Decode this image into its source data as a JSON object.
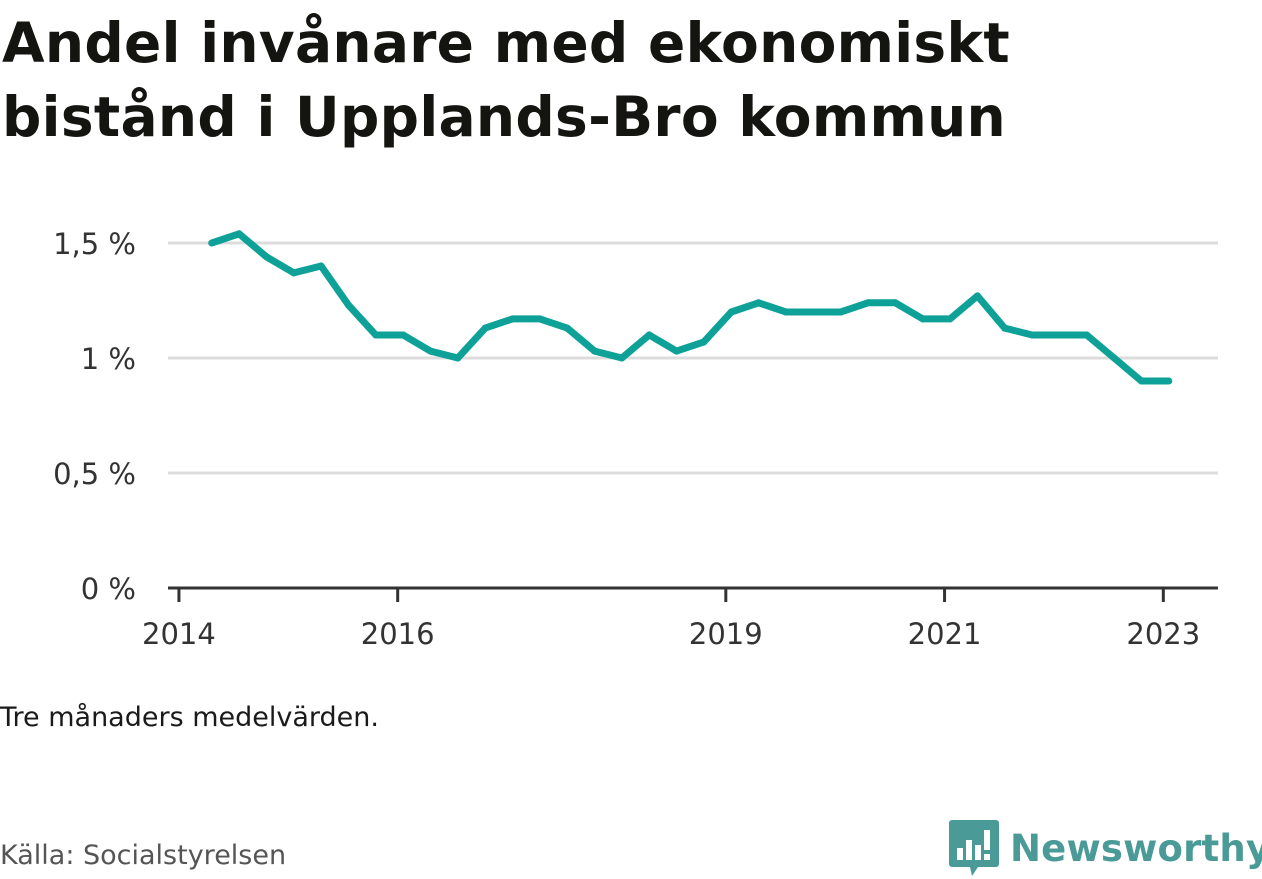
{
  "title": "Andel invånare med ekonomiskt bistånd i Upplands-Bro kommun",
  "note": "Tre månaders medelvärden.",
  "source": "Källa: Socialstyrelsen",
  "brand": {
    "name": "Newsworthy",
    "icon": "bar-chart-speech-bubble-icon",
    "color": "#4a9a97"
  },
  "colors": {
    "line": "#0ea198",
    "grid": "#dcdcdc",
    "axis": "#333333"
  },
  "chart_data": {
    "type": "line",
    "title": "Andel invånare med ekonomiskt bistånd i Upplands-Bro kommun",
    "xlabel": "",
    "ylabel": "",
    "ylim": [
      0,
      1.6
    ],
    "grid": true,
    "yticks": [
      {
        "value": 0,
        "label": "0 %"
      },
      {
        "value": 0.5,
        "label": "0,5 %"
      },
      {
        "value": 1,
        "label": "1 %"
      },
      {
        "value": 1.5,
        "label": "1,5 %"
      }
    ],
    "xticks": [
      {
        "value": 2014.0,
        "label": "2014"
      },
      {
        "value": 2016.0,
        "label": "2016"
      },
      {
        "value": 2019.0,
        "label": "2019"
      },
      {
        "value": 2021.0,
        "label": "2021"
      },
      {
        "value": 2023.0,
        "label": "2023"
      }
    ],
    "xlim": [
      2013.9,
      2023.5
    ],
    "series": [
      {
        "x": [
          2014.3,
          2014.55,
          2014.8,
          2015.05,
          2015.3,
          2015.55,
          2015.8,
          2016.05,
          2016.3,
          2016.55,
          2016.8,
          2017.05,
          2017.3,
          2017.55,
          2017.8,
          2018.05,
          2018.3,
          2018.55,
          2018.8,
          2019.05,
          2019.3,
          2019.55,
          2019.8,
          2020.05,
          2020.3,
          2020.55,
          2020.8,
          2021.05,
          2021.3,
          2021.55,
          2021.8,
          2022.05,
          2022.3,
          2022.55,
          2022.8,
          2023.05
        ],
        "values": [
          1.5,
          1.54,
          1.44,
          1.37,
          1.4,
          1.23,
          1.1,
          1.1,
          1.03,
          1.0,
          1.13,
          1.17,
          1.17,
          1.13,
          1.03,
          1.0,
          1.1,
          1.03,
          1.07,
          1.2,
          1.24,
          1.2,
          1.2,
          1.2,
          1.24,
          1.24,
          1.17,
          1.17,
          1.27,
          1.13,
          1.1,
          1.1,
          1.1,
          1.0,
          0.9,
          0.9
        ]
      }
    ]
  }
}
